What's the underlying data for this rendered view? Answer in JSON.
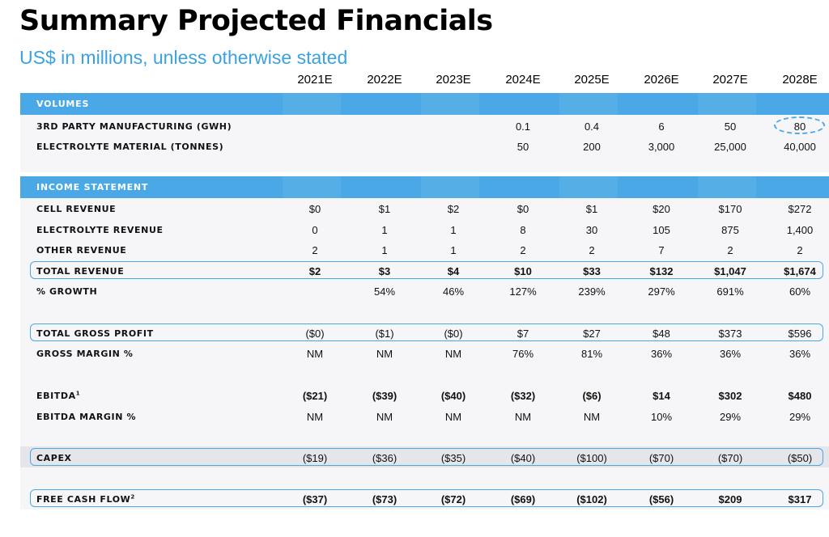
{
  "title": "Summary Projected Financials",
  "subtitle": "US$ in millions, unless otherwise stated",
  "years": [
    "2021E",
    "2022E",
    "2023E",
    "2024E",
    "2025E",
    "2026E",
    "2027E",
    "2028E"
  ],
  "sections": {
    "volumes": "VOLUMES",
    "income": "INCOME STATEMENT"
  },
  "rows": {
    "mfg": {
      "label": "3RD PARTY MANUFACTURING (GWH)",
      "values": [
        "",
        "",
        "",
        "0.1",
        "0.4",
        "6",
        "50",
        "80"
      ]
    },
    "electrolyte_mat": {
      "label": "ELECTROLYTE MATERIAL (TONNES)",
      "values": [
        "",
        "",
        "",
        "50",
        "200",
        "3,000",
        "25,000",
        "40,000"
      ]
    },
    "cell_rev": {
      "label": "CELL REVENUE",
      "values": [
        "$0",
        "$1",
        "$2",
        "$0",
        "$1",
        "$20",
        "$170",
        "$272"
      ]
    },
    "electrolyte_rev": {
      "label": "ELECTROLYTE REVENUE",
      "values": [
        "0",
        "1",
        "1",
        "8",
        "30",
        "105",
        "875",
        "1,400"
      ]
    },
    "other_rev": {
      "label": "OTHER REVENUE",
      "values": [
        "2",
        "1",
        "1",
        "2",
        "2",
        "7",
        "2",
        "2"
      ]
    },
    "total_rev": {
      "label": "TOTAL REVENUE",
      "values": [
        "$2",
        "$3",
        "$4",
        "$10",
        "$33",
        "$132",
        "$1,047",
        "$1,674"
      ]
    },
    "growth": {
      "label": "% GROWTH",
      "values": [
        "",
        "54%",
        "46%",
        "127%",
        "239%",
        "297%",
        "691%",
        "60%"
      ]
    },
    "gross_profit": {
      "label": "TOTAL GROSS PROFIT",
      "values": [
        "($0)",
        "($1)",
        "($0)",
        "$7",
        "$27",
        "$48",
        "$373",
        "$596"
      ]
    },
    "gross_margin": {
      "label": "GROSS MARGIN %",
      "values": [
        "NM",
        "NM",
        "NM",
        "76%",
        "81%",
        "36%",
        "36%",
        "36%"
      ]
    },
    "ebitda": {
      "label": "EBITDA",
      "sup": "1",
      "values": [
        "($21)",
        "($39)",
        "($40)",
        "($32)",
        "($6)",
        "$14",
        "$302",
        "$480"
      ]
    },
    "ebitda_margin": {
      "label": "EBITDA MARGIN %",
      "values": [
        "NM",
        "NM",
        "NM",
        "NM",
        "NM",
        "10%",
        "29%",
        "29%"
      ]
    },
    "capex": {
      "label": "CAPEX",
      "values": [
        "($19)",
        "($36)",
        "($35)",
        "($40)",
        "($100)",
        "($70)",
        "($70)",
        "($50)"
      ]
    },
    "fcf": {
      "label": "FREE CASH FLOW",
      "sup": "2",
      "values": [
        "($37)",
        "($73)",
        "($72)",
        "($69)",
        "($102)",
        "($56)",
        "$209",
        "$317"
      ]
    }
  },
  "colors": {
    "accent": "#4aa8e6",
    "subtitle": "#3aa2e0",
    "band_bg": "#f6f6f8",
    "capex_bg": "#e6e6ea"
  }
}
